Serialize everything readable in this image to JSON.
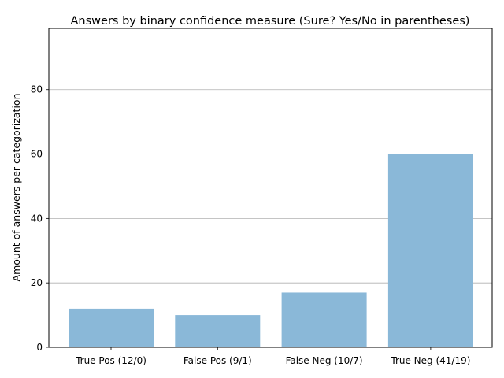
{
  "chart_data": {
    "type": "bar",
    "title": "Answers by binary confidence measure (Sure? Yes/No in parentheses)",
    "xlabel": "",
    "ylabel": "Amount of answers per categorization",
    "categories": [
      "True Pos (12/0)",
      "False Pos (9/1)",
      "False Neg (10/7)",
      "True Neg (41/19)"
    ],
    "values": [
      12,
      10,
      17,
      60
    ],
    "ylim": [
      0,
      99
    ],
    "yticks": [
      0,
      20,
      40,
      60,
      80
    ],
    "grid": "horizontal",
    "bar_color": "#8ab8d8"
  }
}
